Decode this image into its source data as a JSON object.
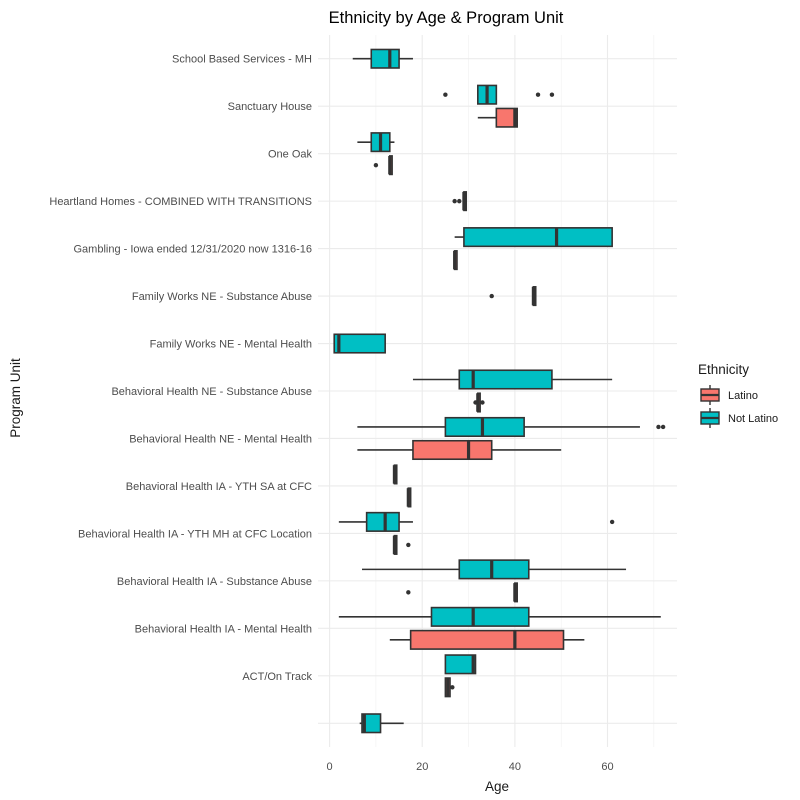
{
  "chart_data": {
    "type": "boxplot",
    "title": "Ethnicity by Age & Program Unit",
    "xlabel": "Age",
    "ylabel": "Program Unit",
    "xlim": [
      -2.5,
      75
    ],
    "x_ticks": [
      0,
      20,
      40,
      60
    ],
    "grid": true,
    "legend": {
      "title": "Ethnicity",
      "position": "right"
    },
    "series": [
      {
        "name": "Latino",
        "color": "#F8766D"
      },
      {
        "name": "Not Latino",
        "color": "#00BFC4"
      }
    ],
    "categories": [
      "",
      "ACT/On Track",
      "Behavioral Health IA -  Mental Health",
      "Behavioral Health IA - Substance Abuse",
      "Behavioral Health IA - YTH MH at CFC Location",
      "Behavioral Health IA - YTH SA at CFC",
      "Behavioral Health NE - Mental Health",
      "Behavioral Health NE - Substance Abuse",
      "Family Works NE - Mental Health",
      "Family Works NE - Substance Abuse",
      "Gambling - Iowa ended 12/31/2020 now 1316-16",
      "Heartland Homes - COMBINED WITH TRANSITIONS",
      "One Oak",
      "Sanctuary House",
      "School Based Services - MH"
    ],
    "boxes": [
      {
        "category": "",
        "group": "Not Latino",
        "min": 6.5,
        "q1": 7,
        "median": 7.5,
        "q3": 11,
        "max": 16,
        "outliers": []
      },
      {
        "category": "ACT/On Track",
        "group": "Latino",
        "min": 25,
        "q1": 25,
        "median": 25.5,
        "q3": 26,
        "max": 26,
        "outliers": [
          26.5
        ]
      },
      {
        "category": "ACT/On Track",
        "group": "Not Latino",
        "min": 25,
        "q1": 25,
        "median": 31,
        "q3": 31.5,
        "max": 31.5,
        "outliers": []
      },
      {
        "category": "Behavioral Health IA -  Mental Health",
        "group": "Latino",
        "min": 13,
        "q1": 17.5,
        "median": 40,
        "q3": 50.5,
        "max": 55,
        "outliers": []
      },
      {
        "category": "Behavioral Health IA -  Mental Health",
        "group": "Not Latino",
        "min": 2,
        "q1": 22,
        "median": 31,
        "q3": 43,
        "max": 71.5,
        "outliers": []
      },
      {
        "category": "Behavioral Health IA - Substance Abuse",
        "group": "Latino",
        "min": 40,
        "q1": 40,
        "median": 40,
        "q3": 40.5,
        "max": 40.5,
        "outliers": [
          17
        ]
      },
      {
        "category": "Behavioral Health IA - Substance Abuse",
        "group": "Not Latino",
        "min": 7,
        "q1": 28,
        "median": 35,
        "q3": 43,
        "max": 64,
        "outliers": []
      },
      {
        "category": "Behavioral Health IA - YTH MH at CFC Location",
        "group": "Latino",
        "min": 14,
        "q1": 14,
        "median": 14,
        "q3": 14.5,
        "max": 14.5,
        "outliers": [
          17
        ]
      },
      {
        "category": "Behavioral Health IA - YTH MH at CFC Location",
        "group": "Not Latino",
        "min": 2,
        "q1": 8,
        "median": 12,
        "q3": 15,
        "max": 18,
        "outliers": [
          61
        ]
      },
      {
        "category": "Behavioral Health IA - YTH SA at CFC",
        "group": "Latino",
        "min": 17,
        "q1": 17,
        "median": 17,
        "q3": 17.5,
        "max": 17.5,
        "outliers": []
      },
      {
        "category": "Behavioral Health IA - YTH SA at CFC",
        "group": "Not Latino",
        "min": 14,
        "q1": 14,
        "median": 14,
        "q3": 14.5,
        "max": 14.5,
        "outliers": []
      },
      {
        "category": "Behavioral Health NE - Mental Health",
        "group": "Latino",
        "min": 6,
        "q1": 18,
        "median": 30,
        "q3": 35,
        "max": 50,
        "outliers": []
      },
      {
        "category": "Behavioral Health NE - Mental Health",
        "group": "Not Latino",
        "min": 6,
        "q1": 25,
        "median": 33,
        "q3": 42,
        "max": 67,
        "outliers": [
          71,
          72
        ]
      },
      {
        "category": "Behavioral Health NE - Substance Abuse",
        "group": "Latino",
        "min": 32,
        "q1": 32,
        "median": 32,
        "q3": 32.5,
        "max": 32.5,
        "outliers": [
          31.5,
          33
        ]
      },
      {
        "category": "Behavioral Health NE - Substance Abuse",
        "group": "Not Latino",
        "min": 18,
        "q1": 28,
        "median": 31,
        "q3": 48,
        "max": 61,
        "outliers": []
      },
      {
        "category": "Family Works NE - Mental Health",
        "group": "Not Latino",
        "min": 1,
        "q1": 1,
        "median": 2,
        "q3": 12,
        "max": 12,
        "outliers": []
      },
      {
        "category": "Family Works NE - Substance Abuse",
        "group": "Not Latino",
        "min": 44,
        "q1": 44,
        "median": 44,
        "q3": 44.5,
        "max": 44.5,
        "outliers": [
          35
        ]
      },
      {
        "category": "Gambling - Iowa ended 12/31/2020 now 1316-16",
        "group": "Latino",
        "min": 27,
        "q1": 27,
        "median": 27,
        "q3": 27.5,
        "max": 27.5,
        "outliers": []
      },
      {
        "category": "Gambling - Iowa ended 12/31/2020 now 1316-16",
        "group": "Not Latino",
        "min": 27,
        "q1": 29,
        "median": 49,
        "q3": 61,
        "max": 61,
        "outliers": []
      },
      {
        "category": "Heartland Homes - COMBINED WITH TRANSITIONS",
        "group": "Not Latino",
        "min": 29,
        "q1": 29,
        "median": 29,
        "q3": 29.5,
        "max": 29.5,
        "outliers": [
          27,
          28
        ]
      },
      {
        "category": "One Oak",
        "group": "Latino",
        "min": 13,
        "q1": 13,
        "median": 13,
        "q3": 13.5,
        "max": 13.5,
        "outliers": [
          10
        ]
      },
      {
        "category": "One Oak",
        "group": "Not Latino",
        "min": 6,
        "q1": 9,
        "median": 11,
        "q3": 13,
        "max": 14,
        "outliers": []
      },
      {
        "category": "Sanctuary House",
        "group": "Latino",
        "min": 32,
        "q1": 36,
        "median": 40,
        "q3": 40.5,
        "max": 40.5,
        "outliers": []
      },
      {
        "category": "Sanctuary House",
        "group": "Not Latino",
        "min": 32,
        "q1": 32,
        "median": 34,
        "q3": 36,
        "max": 36,
        "outliers": [
          25,
          45,
          48
        ]
      },
      {
        "category": "School Based Services - MH",
        "group": "Not Latino",
        "min": 5,
        "q1": 9,
        "median": 13,
        "q3": 15,
        "max": 18,
        "outliers": []
      }
    ]
  }
}
